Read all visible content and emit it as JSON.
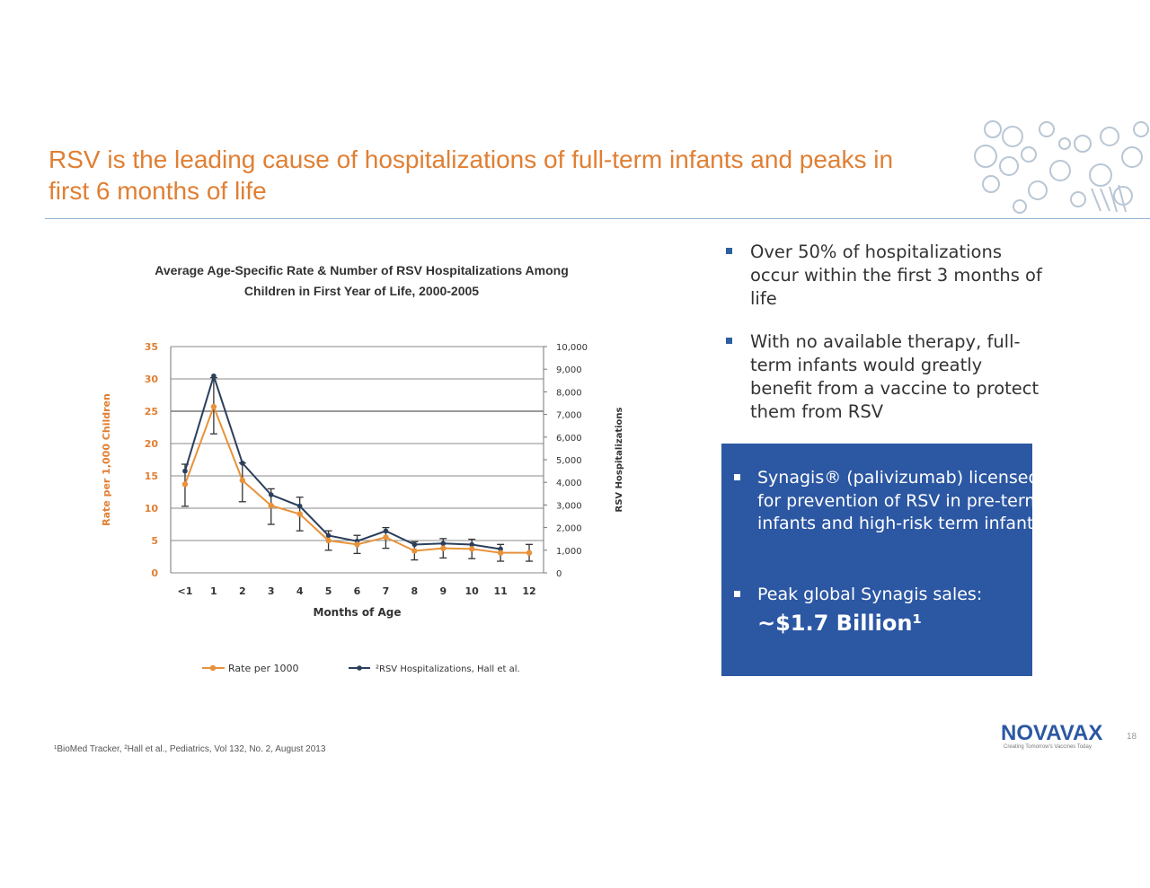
{
  "slide": {
    "title": "RSV is the leading cause of hospitalizations of full-term infants and peaks in first 6 months of life",
    "footnote": "¹BioMed Tracker, ²Hall et al., Pediatrics, Vol 132, No. 2, August 2013",
    "logo": "NOVAVAX",
    "tagline": "Creating Tomorrow's Vaccines Today",
    "page_number": "18"
  },
  "bullets": [
    "Over 50% of hospitalizations occur within the first 3 months of life",
    "With no available therapy, full-term infants would greatly benefit from a vaccine to protect them from RSV"
  ],
  "bluebox": {
    "item1": "Synagis® (palivizumab) licensed for prevention of RSV in pre-term infants and high-risk term infants",
    "item2_label": "Peak global Synagis sales:",
    "item2_value": "~$1.7 Billion¹"
  },
  "colors": {
    "title": "#e07f33",
    "rate_series": "#e8923a",
    "hosp_series": "#2b3f5c",
    "box": "#2c57a3"
  },
  "chart_data": {
    "type": "line",
    "title": "Average Age-Specific Rate & Number of RSV Hospitalizations Among Children in First Year of Life, 2000-2005",
    "xlabel": "Months of Age",
    "ylabel": "Rate per 1,000 Children",
    "y2label": "RSV Hospitalizations",
    "categories": [
      "<1",
      "1",
      "2",
      "3",
      "4",
      "5",
      "6",
      "7",
      "8",
      "9",
      "10",
      "11",
      "12"
    ],
    "ylim": [
      0,
      35
    ],
    "yticks": [
      "0",
      "5",
      "10",
      "15",
      "20",
      "25",
      "30",
      "35"
    ],
    "y2lim": [
      0,
      10000
    ],
    "y2ticks": [
      "0",
      "1,000",
      "2,000",
      "3,000",
      "4,000",
      "5,000",
      "6,000",
      "7,000",
      "8,000",
      "9,000",
      "10,000"
    ],
    "grid": true,
    "legend_position": "bottom",
    "series": [
      {
        "name": "Rate per 1000",
        "axis": "left",
        "values": [
          13.7,
          25.7,
          14.3,
          10.4,
          9.1,
          5.0,
          4.4,
          5.5,
          3.4,
          3.8,
          3.7,
          3.1,
          3.1
        ],
        "error_low": [
          10.3,
          21.5,
          11.0,
          7.5,
          6.5,
          3.5,
          3.0,
          3.8,
          2.0,
          2.3,
          2.2,
          1.8,
          1.8
        ],
        "error_high": [
          16.8,
          30.2,
          17.0,
          13.0,
          11.7,
          6.5,
          5.8,
          7.0,
          4.8,
          5.3,
          5.2,
          4.4,
          4.4
        ]
      },
      {
        "name": "²RSV Hospitalizations, Hall et al.",
        "axis": "right",
        "values": [
          4500,
          8700,
          4850,
          3450,
          2950,
          1650,
          1400,
          1850,
          1250,
          1300,
          1250,
          1050,
          null
        ]
      }
    ]
  }
}
